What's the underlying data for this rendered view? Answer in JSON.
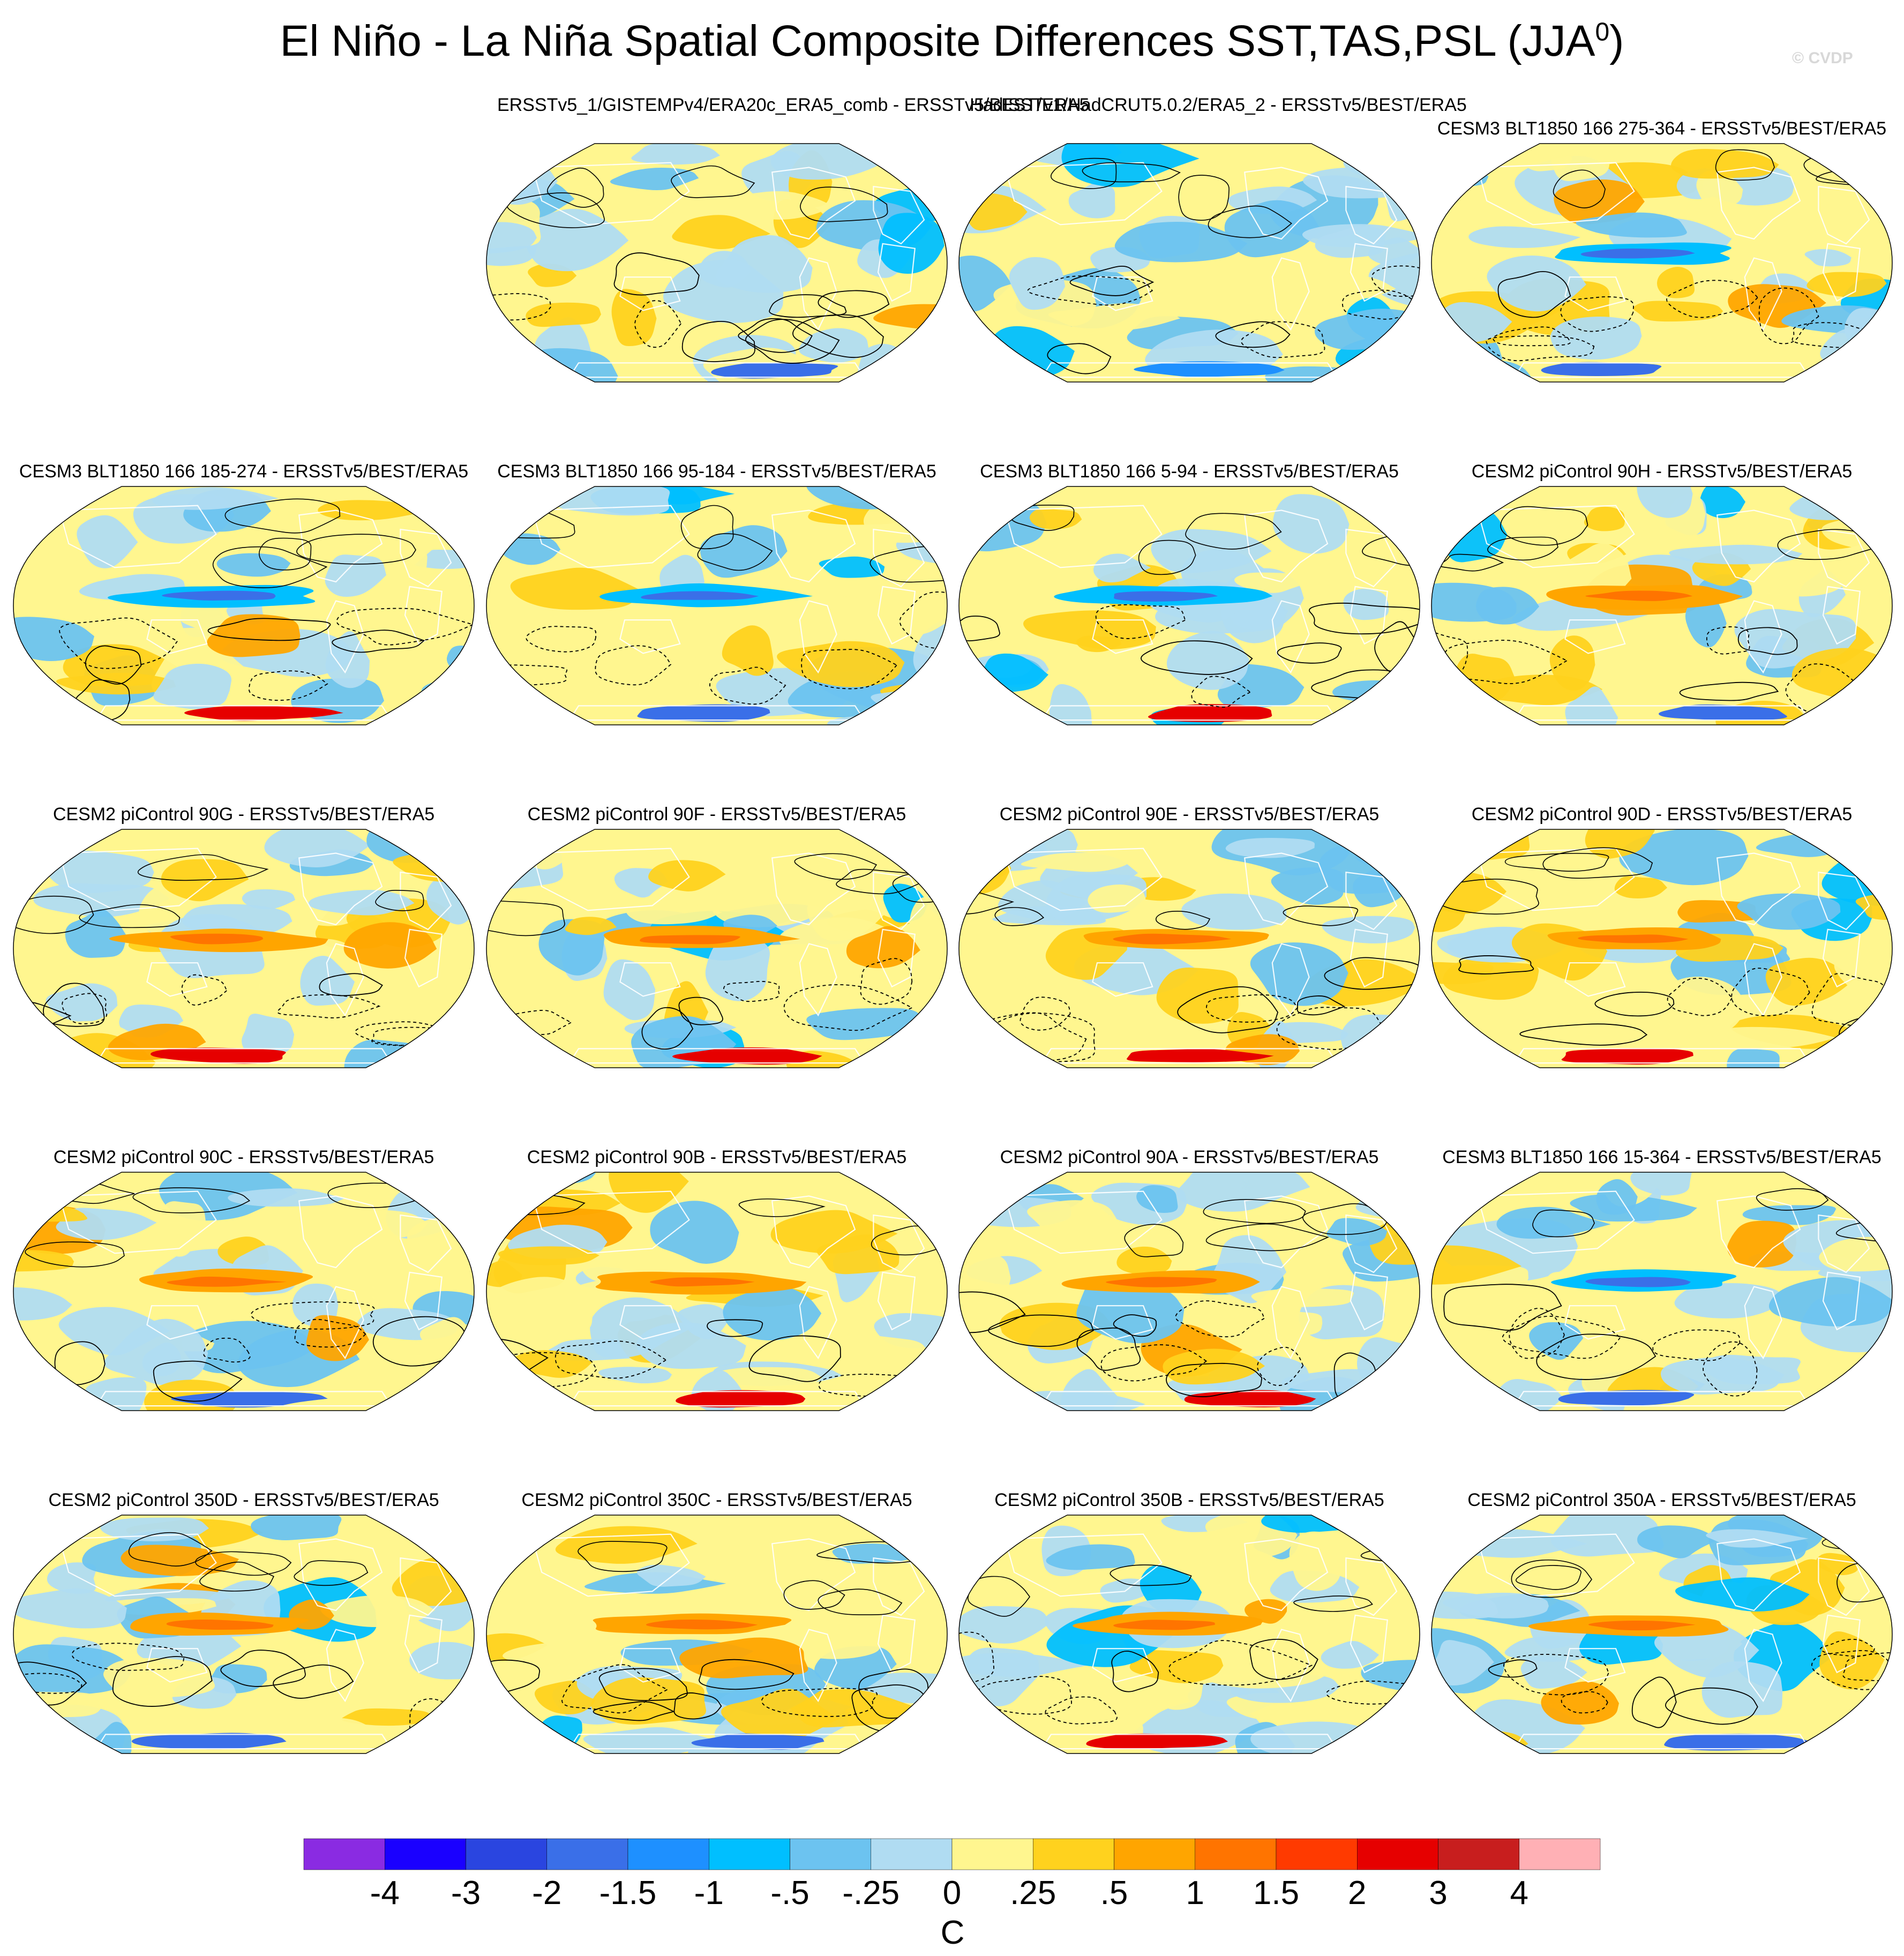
{
  "title": "El Niño - La Niña Spatial Composite Differences SST,TAS,PSL (JJA",
  "title_sup": "0",
  "title_close": ")",
  "watermark": "© CVDP",
  "chart_data": {
    "type": "heatmap",
    "projection": "Robinson (global, shaded fill with PSL contour overlay)",
    "units": "C",
    "colorbar": {
      "tick_labels": [
        "-4",
        "-3",
        "-2",
        "-1.5",
        "-1",
        "-.5",
        "-.25",
        "0",
        ".25",
        ".5",
        "1",
        "1.5",
        "2",
        "3",
        "4"
      ],
      "colors": [
        "#8a2be2",
        "#1a00ff",
        "#2a45e0",
        "#3a6fe8",
        "#1e90ff",
        "#00bfff",
        "#6cc3f0",
        "#b0dcf2",
        "#fff68f",
        "#ffd21e",
        "#ffa500",
        "#ff7400",
        "#ff3a00",
        "#e60000",
        "#c81e1e",
        "#ffb0b5"
      ]
    },
    "panels": [
      {
        "title": "ERSSTv5_1/GISTEMPv4/ERA20c_ERA5_comb -\nERSSTv5/BEST/ERA5",
        "variant": 0
      },
      {
        "title": "HadISSTv1/HadCRUT5.0.2/ERA5_2 -\nERSSTv5/BEST/ERA5",
        "variant": 1
      },
      {
        "title": "CESM3 BLT1850 166 275-364 - ERSSTv5/BEST/ERA5",
        "variant": 2
      },
      {
        "title": "CESM3 BLT1850 166 185-274 - ERSSTv5/BEST/ERA5",
        "variant": 3
      },
      {
        "title": "CESM3 BLT1850 166 95-184 - ERSSTv5/BEST/ERA5",
        "variant": 3
      },
      {
        "title": "CESM3 BLT1850 166 5-94 - ERSSTv5/BEST/ERA5",
        "variant": 3
      },
      {
        "title": "CESM2 piControl 90H - ERSSTv5/BEST/ERA5",
        "variant": 4
      },
      {
        "title": "CESM2 piControl 90G - ERSSTv5/BEST/ERA5",
        "variant": 5
      },
      {
        "title": "CESM2 piControl 90F - ERSSTv5/BEST/ERA5",
        "variant": 5
      },
      {
        "title": "CESM2 piControl 90E - ERSSTv5/BEST/ERA5",
        "variant": 5
      },
      {
        "title": "CESM2 piControl 90D - ERSSTv5/BEST/ERA5",
        "variant": 4
      },
      {
        "title": "CESM2 piControl 90C - ERSSTv5/BEST/ERA5",
        "variant": 4
      },
      {
        "title": "CESM2 piControl 90B - ERSSTv5/BEST/ERA5",
        "variant": 4
      },
      {
        "title": "CESM2 piControl 90A - ERSSTv5/BEST/ERA5",
        "variant": 5
      },
      {
        "title": "CESM3 BLT1850 166 15-364 - ERSSTv5/BEST/ERA5",
        "variant": 2
      },
      {
        "title": "CESM2 piControl 350D - ERSSTv5/BEST/ERA5",
        "variant": 5
      },
      {
        "title": "CESM2 piControl 350C - ERSSTv5/BEST/ERA5",
        "variant": 5
      },
      {
        "title": "CESM2 piControl 350B - ERSSTv5/BEST/ERA5",
        "variant": 5
      },
      {
        "title": "CESM2 piControl 350A - ERSSTv5/BEST/ERA5",
        "variant": 4
      }
    ]
  }
}
